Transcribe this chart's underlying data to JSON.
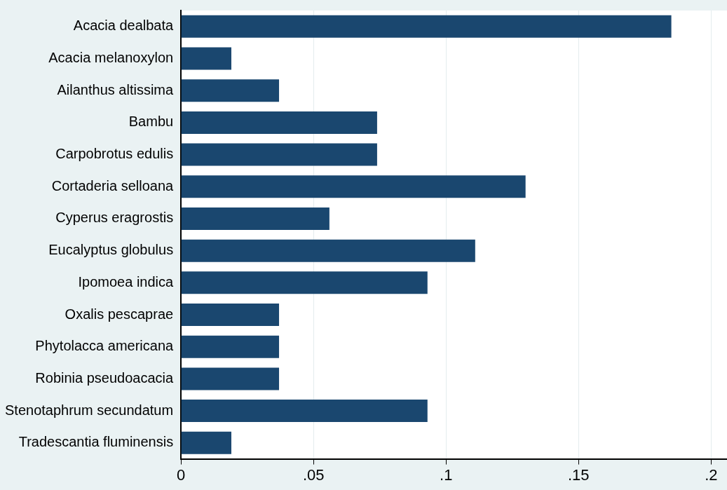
{
  "chart_data": {
    "type": "bar",
    "orientation": "horizontal",
    "categories": [
      "Acacia dealbata",
      "Acacia melanoxylon",
      "Ailanthus altissima",
      "Bambu",
      "Carpobrotus edulis",
      "Cortaderia selloana",
      "Cyperus eragrostis",
      "Eucalyptus globulus",
      "Ipomoea indica",
      "Oxalis pescaprae",
      "Phytolacca americana",
      "Robinia pseudoacacia",
      "Stenotaphrum secundatum",
      "Tradescantia fluminensis"
    ],
    "values": [
      0.185,
      0.019,
      0.037,
      0.074,
      0.074,
      0.13,
      0.056,
      0.111,
      0.093,
      0.037,
      0.037,
      0.037,
      0.093,
      0.019
    ],
    "color": "#1a476f",
    "xlim": [
      0,
      0.206
    ],
    "xticks": [
      0,
      {
        "value": 0.05,
        "label": ".05"
      },
      {
        "value": 0.1,
        "label": ".1"
      },
      {
        "value": 0.15,
        "label": ".15"
      },
      {
        "value": 0.2,
        "label": ".2"
      }
    ],
    "grid": "x",
    "legend": false
  }
}
